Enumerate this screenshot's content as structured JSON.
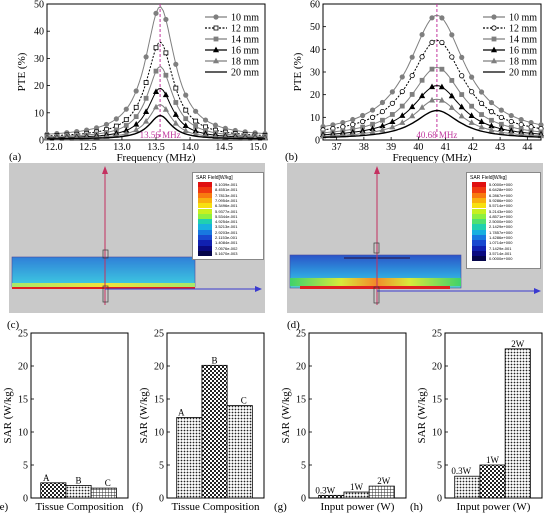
{
  "colors": {
    "axis": "#000000",
    "series_gray": "#7f7f7f",
    "series_black": "#000000",
    "marker_line": "#c0369e",
    "sar_bg": "#c9c9c9"
  },
  "panel_labels": [
    "(a)",
    "(b)",
    "(c)",
    "(d)",
    "(e)",
    "(f)",
    "(g)",
    "(h)"
  ],
  "chart_data": [
    {
      "id": "a",
      "type": "line",
      "ylabel": "PTE (%)",
      "xlabel": "Frequency (MHz)",
      "xlim": [
        11.9,
        15.1
      ],
      "ylim": [
        0,
        50
      ],
      "xticks": [
        12.0,
        12.5,
        13.0,
        13.5,
        14.0,
        14.5,
        15.0
      ],
      "xtick_labels": [
        "12.0",
        "12.5",
        "13.0",
        "13.5",
        "14.0",
        "14.5",
        "15.0"
      ],
      "yticks": [
        0,
        10,
        20,
        30,
        40,
        50
      ],
      "center": 13.56,
      "annotation": "13.56 MHz",
      "legend_position": "top-right",
      "series": [
        {
          "name": "10 mm",
          "peak": 49,
          "floor": 1.0,
          "gamma": 0.26,
          "style": "gray-circle"
        },
        {
          "name": "12 mm",
          "peak": 36,
          "floor": 0.8,
          "gamma": 0.24,
          "style": "black-open-square-dash"
        },
        {
          "name": "14 mm",
          "peak": 27,
          "floor": 0.7,
          "gamma": 0.23,
          "style": "gray-square"
        },
        {
          "name": "16 mm",
          "peak": 19,
          "floor": 0.5,
          "gamma": 0.22,
          "style": "black-triangle"
        },
        {
          "name": "18 mm",
          "peak": 13,
          "floor": 0.4,
          "gamma": 0.21,
          "style": "gray-triangle"
        },
        {
          "name": "20 mm",
          "peak": 9,
          "floor": 0.3,
          "gamma": 0.2,
          "style": "black-line"
        }
      ]
    },
    {
      "id": "b",
      "type": "line",
      "ylabel": "PTE (%)",
      "xlabel": "Frequency (MHz)",
      "xlim": [
        36.5,
        44.5
      ],
      "ylim": [
        0,
        60
      ],
      "xticks": [
        37,
        38,
        39,
        40,
        41,
        42,
        43,
        44
      ],
      "xtick_labels": [
        "37",
        "38",
        "39",
        "40",
        "41",
        "42",
        "43",
        "44"
      ],
      "yticks": [
        0,
        10,
        20,
        30,
        40,
        50,
        60
      ],
      "center": 40.68,
      "annotation": "40.68 MHz",
      "legend_position": "top-right",
      "series": [
        {
          "name": "10 mm",
          "peak": 55,
          "floor": 1.5,
          "gamma": 1.25,
          "style": "gray-circle"
        },
        {
          "name": "12 mm",
          "peak": 44,
          "floor": 1.2,
          "gamma": 1.2,
          "style": "black-open-circle-dash"
        },
        {
          "name": "14 mm",
          "peak": 32,
          "floor": 1.0,
          "gamma": 1.15,
          "style": "gray-square"
        },
        {
          "name": "16 mm",
          "peak": 24,
          "floor": 0.8,
          "gamma": 1.1,
          "style": "black-triangle"
        },
        {
          "name": "18 mm",
          "peak": 18,
          "floor": 0.6,
          "gamma": 1.05,
          "style": "gray-triangle"
        },
        {
          "name": "20 mm",
          "peak": 13,
          "floor": 0.5,
          "gamma": 1.0,
          "style": "black-line"
        }
      ]
    },
    {
      "id": "e",
      "type": "bar",
      "ylabel": "SAR (W/kg)",
      "xlabel": "Tissue Composition",
      "ylim": [
        0,
        25
      ],
      "yticks": [
        0,
        5,
        10,
        15,
        20,
        25
      ],
      "categories": [
        "A",
        "B",
        "C"
      ],
      "values": [
        2.3,
        1.9,
        1.5
      ]
    },
    {
      "id": "f",
      "type": "bar",
      "ylabel": "SAR (W/kg)",
      "xlabel": "Tissue Composition",
      "ylim": [
        0,
        25
      ],
      "yticks": [
        0,
        5,
        10,
        15,
        20,
        25
      ],
      "categories": [
        "A",
        "B",
        "C"
      ],
      "values": [
        12.2,
        20.1,
        14.0
      ]
    },
    {
      "id": "g",
      "type": "bar",
      "ylabel": "SAR (W/kg)",
      "xlabel": "Input power (W)",
      "ylim": [
        0,
        25
      ],
      "yticks": [
        0,
        5,
        10,
        15,
        20,
        25
      ],
      "categories": [
        "0.3W",
        "1W",
        "2W"
      ],
      "values": [
        0.4,
        0.9,
        1.8
      ]
    },
    {
      "id": "h",
      "type": "bar",
      "ylabel": "SAR (W/kg)",
      "xlabel": "Input power (W)",
      "ylim": [
        0,
        25
      ],
      "yticks": [
        0,
        5,
        10,
        15,
        20,
        25
      ],
      "categories": [
        "0.3W",
        "1W",
        "2W"
      ],
      "values": [
        3.3,
        5.0,
        22.6
      ]
    }
  ],
  "sar_maps": [
    {
      "id": "c",
      "legend_title": "SAR Field[W/kg]",
      "legend_values": [
        "5.1039e-001",
        "8.4551e-001",
        "7.7813e-001",
        "7.0954e-001",
        "6.3496e-001",
        "5.9377e-001",
        "5.5344e-001",
        "4.9254e-001",
        "3.5213e-001",
        "2.9203e-001",
        "2.1153e-001",
        "1.4084e-001",
        "7.0576e-002",
        "5.1670e-003"
      ]
    },
    {
      "id": "d",
      "legend_title": "SAR Field[W/kg]",
      "legend_values": [
        "5.0000e+000",
        "6.6428e+000",
        "6.2867e+000",
        "5.9286e+000",
        "5.5714e+000",
        "5.2143e+000",
        "4.8571e+000",
        "2.5000e+000",
        "2.1429e+000",
        "1.7857e+000",
        "1.4286e+000",
        "1.0714e+000",
        "7.1429e-001",
        "3.5714e-001",
        "0.0000e+000"
      ]
    }
  ]
}
